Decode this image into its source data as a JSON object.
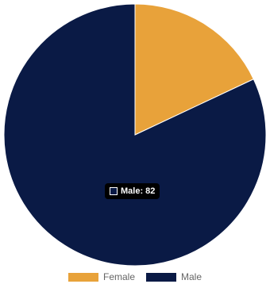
{
  "chart_data": {
    "type": "pie",
    "categories": [
      "Female",
      "Male"
    ],
    "values": [
      18,
      82
    ],
    "colors": [
      "#e8a23a",
      "#0a1a45"
    ],
    "title": "",
    "legend_position": "bottom"
  },
  "tooltip": {
    "label": "Male: 82"
  }
}
